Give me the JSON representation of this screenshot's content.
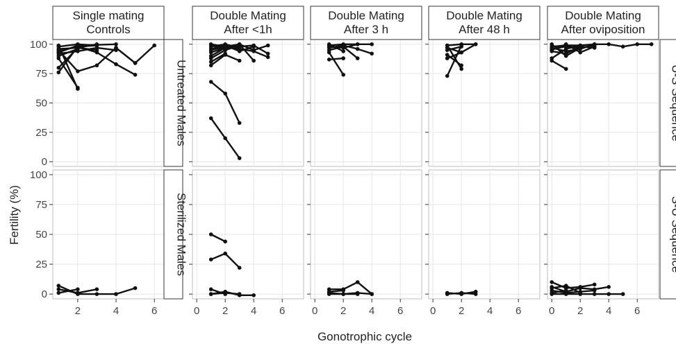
{
  "chart_data": {
    "type": "line",
    "xlabel": "Gonotrophic cycle",
    "ylabel": "Fertility (%)",
    "x_ticks": [
      "2",
      "4",
      "6"
    ],
    "x_ticks_with_zero": [
      "0",
      "2",
      "4",
      "6"
    ],
    "y_ticks": [
      "0",
      "25",
      "50",
      "75",
      "100"
    ],
    "ylim": [
      0,
      100
    ],
    "grid": true,
    "columns": [
      {
        "label_line1": "Single mating",
        "label_line2": "Controls",
        "xlim": [
          0.7,
          6.5
        ]
      },
      {
        "label_line1": "Double Mating",
        "label_line2": "After <1h",
        "xlim": [
          -0.3,
          7.5
        ]
      },
      {
        "label_line1": "Double Mating",
        "label_line2": "After 3 h",
        "xlim": [
          -0.3,
          7.5
        ]
      },
      {
        "label_line1": "Double Mating",
        "label_line2": "After 48 h",
        "xlim": [
          -0.3,
          7.5
        ]
      },
      {
        "label_line1": "Double Mating",
        "label_line2": "After oviposition",
        "xlim": [
          -0.3,
          7.5
        ]
      }
    ],
    "row_inner_labels": [
      "Untreated Males",
      "Sterilized Males"
    ],
    "row_outer_labels": [
      "U-S Sequence",
      "S-U Sequence"
    ],
    "panels": [
      {
        "row": 0,
        "col": 0,
        "series": [
          {
            "x": [
              1,
              2,
              3
            ],
            "y": [
              98,
              100,
              99
            ]
          },
          {
            "x": [
              1,
              2,
              3
            ],
            "y": [
              96,
              97,
              100
            ]
          },
          {
            "x": [
              1,
              2,
              4
            ],
            "y": [
              93,
              99,
              100
            ]
          },
          {
            "x": [
              1,
              2
            ],
            "y": [
              90,
              96
            ]
          },
          {
            "x": [
              1,
              2
            ],
            "y": [
              99,
              62
            ]
          },
          {
            "x": [
              1,
              2
            ],
            "y": [
              76,
              98
            ]
          },
          {
            "x": [
              1,
              2,
              3,
              4
            ],
            "y": [
              92,
              94,
              97,
              95
            ]
          },
          {
            "x": [
              1,
              2,
              3
            ],
            "y": [
              80,
              97,
              95
            ]
          },
          {
            "x": [
              1,
              2,
              3,
              4,
              5
            ],
            "y": [
              95,
              77,
              82,
              97,
              84
            ]
          },
          {
            "x": [
              1,
              2
            ],
            "y": [
              88,
              63
            ]
          },
          {
            "x": [
              2,
              3,
              4,
              5
            ],
            "y": [
              98,
              93,
              83,
              74
            ]
          },
          {
            "x": [
              4,
              5,
              6
            ],
            "y": [
              97,
              84,
              99
            ]
          },
          {
            "x": [
              1,
              2,
              3
            ],
            "y": [
              94,
              98,
              99
            ]
          }
        ]
      },
      {
        "row": 0,
        "col": 1,
        "series": [
          {
            "x": [
              1,
              2,
              3,
              4,
              5
            ],
            "y": [
              100,
              98,
              100,
              95,
              99
            ]
          },
          {
            "x": [
              1,
              2,
              3
            ],
            "y": [
              98,
              100,
              97
            ]
          },
          {
            "x": [
              1,
              2,
              3,
              4
            ],
            "y": [
              96,
              99,
              94,
              98
            ]
          },
          {
            "x": [
              1,
              2,
              3
            ],
            "y": [
              93,
              97,
              99
            ]
          },
          {
            "x": [
              1,
              2,
              3,
              4
            ],
            "y": [
              90,
              97,
              100,
              86
            ]
          },
          {
            "x": [
              1,
              2,
              3
            ],
            "y": [
              88,
              95,
              99
            ]
          },
          {
            "x": [
              1,
              2
            ],
            "y": [
              85,
              92
            ]
          },
          {
            "x": [
              1,
              2,
              3,
              4,
              5
            ],
            "y": [
              95,
              98,
              96,
              94,
              89
            ]
          },
          {
            "x": [
              1,
              2,
              3
            ],
            "y": [
              82,
              91,
              86
            ]
          },
          {
            "x": [
              1,
              2,
              3,
              4,
              5
            ],
            "y": [
              99,
              96,
              98,
              99,
              92
            ]
          },
          {
            "x": [
              1,
              2,
              3
            ],
            "y": [
              68,
              58,
              33
            ]
          },
          {
            "x": [
              1,
              2,
              3
            ],
            "y": [
              37,
              20,
              3
            ]
          }
        ]
      },
      {
        "row": 0,
        "col": 2,
        "series": [
          {
            "x": [
              1,
              2,
              3,
              4
            ],
            "y": [
              99,
              100,
              100,
              100
            ]
          },
          {
            "x": [
              1,
              2,
              3,
              4
            ],
            "y": [
              97,
              99,
              96,
              92
            ]
          },
          {
            "x": [
              1,
              2,
              3
            ],
            "y": [
              95,
              98,
              88
            ]
          },
          {
            "x": [
              1,
              2
            ],
            "y": [
              93,
              74
            ]
          },
          {
            "x": [
              1,
              2
            ],
            "y": [
              87,
              88
            ]
          },
          {
            "x": [
              1,
              2
            ],
            "y": [
              100,
              94
            ]
          },
          {
            "x": [
              1,
              2,
              3
            ],
            "y": [
              98,
              97,
              100
            ]
          }
        ]
      },
      {
        "row": 0,
        "col": 3,
        "series": [
          {
            "x": [
              1,
              2,
              3
            ],
            "y": [
              99,
              100,
              100
            ]
          },
          {
            "x": [
              1,
              2,
              3
            ],
            "y": [
              97,
              93,
              100
            ]
          },
          {
            "x": [
              1,
              2
            ],
            "y": [
              95,
              98
            ]
          },
          {
            "x": [
              1,
              2
            ],
            "y": [
              91,
              82
            ]
          },
          {
            "x": [
              1,
              2
            ],
            "y": [
              73,
              99
            ]
          },
          {
            "x": [
              1,
              2
            ],
            "y": [
              99,
              79
            ]
          },
          {
            "x": [
              1,
              2
            ],
            "y": [
              88,
              93
            ]
          }
        ]
      },
      {
        "row": 0,
        "col": 4,
        "series": [
          {
            "x": [
              0,
              1,
              2,
              3,
              4,
              5,
              6,
              7
            ],
            "y": [
              98,
              99,
              99,
              100,
              100,
              98,
              100,
              100
            ]
          },
          {
            "x": [
              0,
              1,
              2,
              3
            ],
            "y": [
              96,
              98,
              97,
              99
            ]
          },
          {
            "x": [
              0,
              1,
              2,
              3
            ],
            "y": [
              94,
              92,
              98,
              97
            ]
          },
          {
            "x": [
              0,
              1,
              2
            ],
            "y": [
              88,
              96,
              99
            ]
          },
          {
            "x": [
              0,
              1
            ],
            "y": [
              86,
              79
            ]
          },
          {
            "x": [
              0,
              1,
              2,
              3
            ],
            "y": [
              97,
              94,
              96,
              100
            ]
          },
          {
            "x": [
              0,
              1,
              2
            ],
            "y": [
              100,
              90,
              97
            ]
          },
          {
            "x": [
              0,
              1,
              2,
              3
            ],
            "y": [
              95,
              100,
              93,
              98
            ]
          }
        ]
      },
      {
        "row": 1,
        "col": 0,
        "series": [
          {
            "x": [
              1,
              2,
              3,
              4,
              5
            ],
            "y": [
              7,
              0,
              0,
              0,
              5
            ]
          },
          {
            "x": [
              1,
              2,
              3
            ],
            "y": [
              4,
              1,
              4
            ]
          },
          {
            "x": [
              1,
              2
            ],
            "y": [
              1,
              4
            ]
          }
        ]
      },
      {
        "row": 1,
        "col": 1,
        "series": [
          {
            "x": [
              1,
              2
            ],
            "y": [
              50,
              44
            ]
          },
          {
            "x": [
              1,
              2,
              3
            ],
            "y": [
              29,
              34,
              22
            ]
          },
          {
            "x": [
              1,
              2,
              3,
              4
            ],
            "y": [
              0,
              2,
              -1,
              -1
            ]
          },
          {
            "x": [
              1,
              2
            ],
            "y": [
              4,
              0
            ]
          },
          {
            "x": [
              1,
              2,
              3
            ],
            "y": [
              0,
              1,
              0
            ]
          }
        ]
      },
      {
        "row": 1,
        "col": 2,
        "series": [
          {
            "x": [
              1,
              2,
              3,
              4
            ],
            "y": [
              4,
              4,
              10,
              0
            ]
          },
          {
            "x": [
              1,
              2,
              3
            ],
            "y": [
              1,
              0,
              0
            ]
          },
          {
            "x": [
              1,
              2,
              3,
              4
            ],
            "y": [
              0,
              0,
              1,
              0
            ]
          },
          {
            "x": [
              1,
              2
            ],
            "y": [
              2,
              3
            ]
          }
        ]
      },
      {
        "row": 1,
        "col": 3,
        "series": [
          {
            "x": [
              1,
              2,
              3
            ],
            "y": [
              1,
              0,
              2
            ]
          },
          {
            "x": [
              1,
              2,
              3
            ],
            "y": [
              0,
              1,
              0
            ]
          }
        ]
      },
      {
        "row": 1,
        "col": 4,
        "series": [
          {
            "x": [
              0,
              1,
              2,
              3
            ],
            "y": [
              10,
              5,
              6,
              8
            ]
          },
          {
            "x": [
              0,
              1,
              2,
              3,
              4
            ],
            "y": [
              6,
              2,
              5,
              4,
              6
            ]
          },
          {
            "x": [
              0,
              1,
              2,
              3
            ],
            "y": [
              3,
              1,
              2,
              3
            ]
          },
          {
            "x": [
              0,
              1,
              2,
              3,
              4,
              5
            ],
            "y": [
              0,
              0,
              0,
              0,
              0,
              0
            ]
          },
          {
            "x": [
              0,
              1,
              2
            ],
            "y": [
              5,
              7,
              1
            ]
          },
          {
            "x": [
              0,
              1
            ],
            "y": [
              1,
              3
            ]
          }
        ]
      }
    ]
  }
}
